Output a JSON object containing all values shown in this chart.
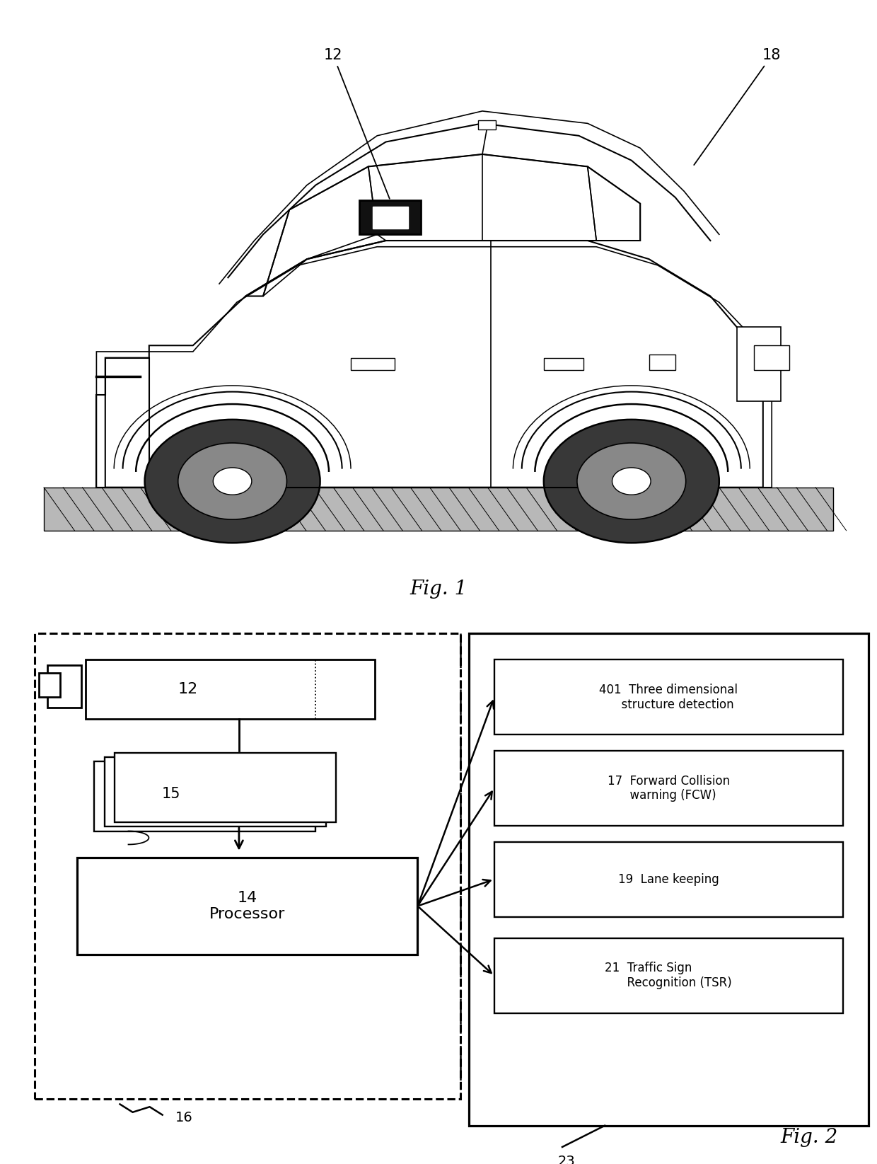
{
  "fig1_label": "Fig. 1",
  "fig2_label": "Fig. 2",
  "label_12": "12",
  "label_18": "18",
  "processor_text": "14\nProcessor",
  "box_12_text": "12",
  "box_15_text": "15",
  "output_labels": [
    "401  Three dimensional\n      structure detection",
    "17  Forward Collision\n      warning (FCW)",
    "19  Lane keeping",
    "21  Traffic Sign\n      Recognition (TSR)"
  ],
  "bg": "#ffffff",
  "fg": "#000000",
  "label_16": "16",
  "label_23": "23"
}
